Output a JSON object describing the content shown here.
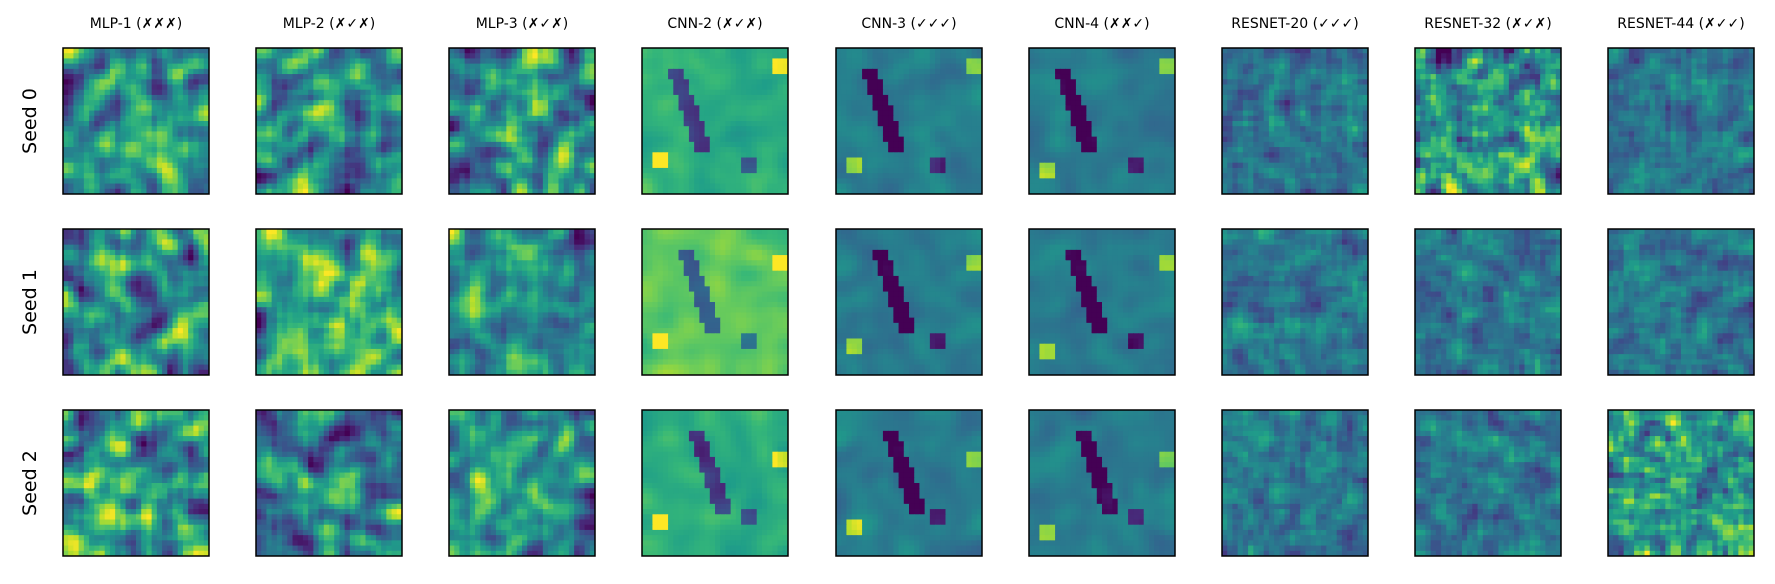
{
  "chart_data": {
    "type": "heatmap",
    "layout": "image grid",
    "colormap": "viridis",
    "columns": [
      "MLP-1 (✗✗✗)",
      "MLP-2 (✗✓✗)",
      "MLP-3 (✗✓✗)",
      "CNN-2 (✗✓✗)",
      "CNN-3 (✓✓✓)",
      "CNN-4 (✗✗✓)",
      "RESNET-20 (✓✓✓)",
      "RESNET-32 (✗✓✗)",
      "RESNET-44 (✗✓✓)"
    ],
    "rows": [
      "Seed 0",
      "Seed 1",
      "Seed 2"
    ],
    "image_resolution": 28,
    "ticks": "none"
  }
}
